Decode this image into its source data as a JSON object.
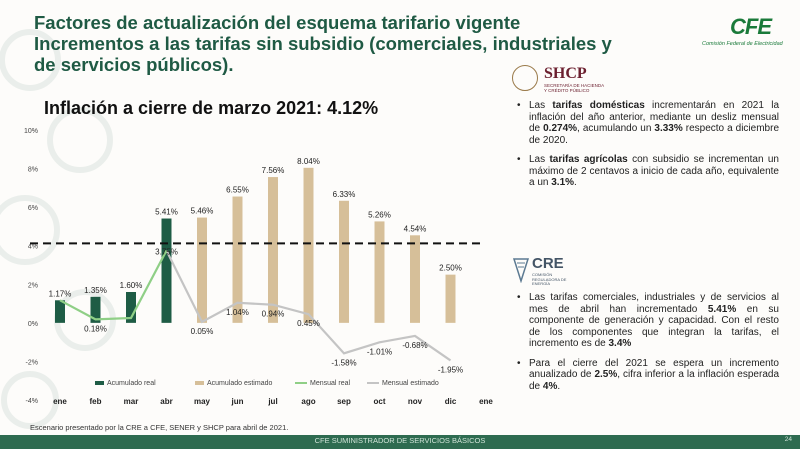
{
  "header": {
    "title_line1": "Factores de actualización del esquema tarifario vigente",
    "title_line2": "Incrementos a las tarifas sin subsidio (comerciales, industriales y",
    "title_line3": "de servicios públicos).",
    "cfe_logo": "CFE",
    "cfe_subtitle": "Comisión Federal de Electricidad"
  },
  "chart_title": "Inflación a cierre de marzo 2021: 4.12%",
  "chart_data": {
    "type": "bar",
    "categories": [
      "ene",
      "feb",
      "mar",
      "abr",
      "may",
      "jun",
      "jul",
      "ago",
      "sep",
      "oct",
      "nov",
      "dic",
      "ene"
    ],
    "series": [
      {
        "name": "Acumulado real",
        "color": "#1e5c45",
        "values": [
          1.17,
          1.35,
          1.6,
          5.41,
          null,
          null,
          null,
          null,
          null,
          null,
          null,
          null,
          null
        ],
        "labels": [
          "1.17%",
          "1.35%",
          "1.60%",
          "5.41%",
          "",
          "",
          "",
          "",
          "",
          "",
          "",
          "",
          ""
        ]
      },
      {
        "name": "Acumulado estimado",
        "color": "#d6bf99",
        "values": [
          null,
          null,
          null,
          null,
          5.46,
          6.55,
          7.56,
          8.04,
          6.33,
          5.26,
          4.54,
          2.5,
          null
        ],
        "labels": [
          "",
          "",
          "",
          "",
          "5.46%",
          "6.55%",
          "7.56%",
          "8.04%",
          "6.33%",
          "5.26%",
          "4.54%",
          "2.50%",
          ""
        ]
      },
      {
        "name": "Mensual real",
        "color": "#8fcf86",
        "values": [
          1.17,
          0.18,
          0.25,
          3.75,
          null,
          null,
          null,
          null,
          null,
          null,
          null,
          null,
          null
        ],
        "labels": [
          "",
          "0.18%",
          "",
          "3.75%",
          "",
          "",
          "",
          "",
          "",
          "",
          "",
          "",
          ""
        ]
      },
      {
        "name": "Mensual estimado",
        "color": "#c4c4c4",
        "values": [
          null,
          null,
          null,
          3.75,
          0.05,
          1.04,
          0.94,
          0.45,
          -1.58,
          -1.01,
          -0.68,
          -1.95,
          null
        ],
        "labels": [
          "",
          "",
          "",
          "",
          "0.05%",
          "1.04%",
          "0.94%",
          "0.45%",
          "-1.58%",
          "-1.01%",
          "-0.68%",
          "-1.95%",
          ""
        ]
      }
    ],
    "reference_line": 4.12,
    "ylim": [
      -4,
      10
    ],
    "ytick_labels": [
      "10%",
      "8%",
      "6%",
      "4%",
      "2%",
      "0%",
      "-2%",
      "-4%"
    ],
    "ytick_values": [
      10,
      8,
      6,
      4,
      2,
      0,
      -2,
      -4
    ]
  },
  "shcp": {
    "logo_text": "SHCP",
    "logo_sub": "SECRETARÍA DE HACIENDA Y CRÉDITO PÚBLICO",
    "bullet1": {
      "p1": "Las ",
      "b1": "tarifas domésticas",
      "p2": " incrementarán en 2021 la inflación del año anterior, mediante un desliz mensual de ",
      "b2": "0.274%",
      "p3": ", acumulando un ",
      "b3": "3.33%",
      "p4": " respecto a diciembre de 2020."
    },
    "bullet2": {
      "p1": "Las ",
      "b1": "tarifas agrícolas",
      "p2": " con subsidio se incrementan un máximo de 2 centavos a inicio de cada año, equivalente a un ",
      "b2": "3.1%",
      "p3": "."
    }
  },
  "cre": {
    "logo_text": "CRE",
    "logo_sub": "COMISIÓN REGULADORA DE ENERGÍA",
    "bullet1": {
      "p1": "Las tarifas comerciales, industriales y de servicios al mes de abril han incrementado ",
      "b1": "5.41%",
      "p2": " en su componente de generación y capacidad. Con el resto de los componentes que integran la tarifas, el incremento es de ",
      "b2": "3.4%"
    },
    "bullet2": {
      "p1": "Para el cierre del 2021 se espera un incremento anualizado de ",
      "b1": "2.5%",
      "p2": ", cifra inferior a la inflación esperada de ",
      "b2": "4%",
      "p3": "."
    }
  },
  "footnote": "Escenario presentado por la CRE a CFE, SENER y SHCP para abril de 2021.",
  "footer": "CFE SUMINISTRADOR DE SERVICIOS BÁSICOS",
  "page_number": "24"
}
